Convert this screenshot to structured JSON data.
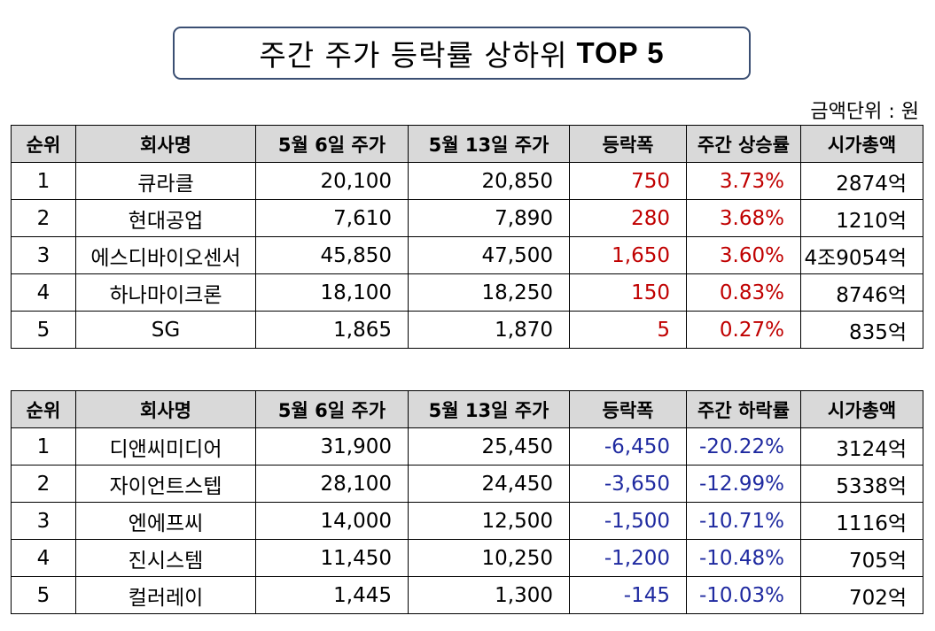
{
  "title": {
    "text": "주간 주가 등락률 상하위",
    "emph": "TOP 5"
  },
  "unit_note": "금액단위 : 원",
  "colors": {
    "up": "#c00000",
    "down": "#1f2aa0",
    "header_bg": "#d9d9d9",
    "title_border": "#3b4f73"
  },
  "rise_table": {
    "headers": [
      "순위",
      "회사명",
      "5월 6일 주가",
      "5월 13일 주가",
      "등락폭",
      "주간 상승률",
      "시가총액"
    ],
    "rows": [
      {
        "rank": "1",
        "company": "큐라클",
        "price_may6": "20,100",
        "price_may13": "20,850",
        "change": "750",
        "rate": "3.73%",
        "cap": "2874억"
      },
      {
        "rank": "2",
        "company": "현대공업",
        "price_may6": "7,610",
        "price_may13": "7,890",
        "change": "280",
        "rate": "3.68%",
        "cap": "1210억"
      },
      {
        "rank": "3",
        "company": "에스디바이오센서",
        "price_may6": "45,850",
        "price_may13": "47,500",
        "change": "1,650",
        "rate": "3.60%",
        "cap": "4조9054억"
      },
      {
        "rank": "4",
        "company": "하나마이크론",
        "price_may6": "18,100",
        "price_may13": "18,250",
        "change": "150",
        "rate": "0.83%",
        "cap": "8746억"
      },
      {
        "rank": "5",
        "company": "SG",
        "price_may6": "1,865",
        "price_may13": "1,870",
        "change": "5",
        "rate": "0.27%",
        "cap": "835억"
      }
    ]
  },
  "fall_table": {
    "headers": [
      "순위",
      "회사명",
      "5월 6일 주가",
      "5월 13일 주가",
      "등락폭",
      "주간 하락률",
      "시가총액"
    ],
    "rows": [
      {
        "rank": "1",
        "company": "디앤씨미디어",
        "price_may6": "31,900",
        "price_may13": "25,450",
        "change": "-6,450",
        "rate": "-20.22%",
        "cap": "3124억"
      },
      {
        "rank": "2",
        "company": "자이언트스텝",
        "price_may6": "28,100",
        "price_may13": "24,450",
        "change": "-3,650",
        "rate": "-12.99%",
        "cap": "5338억"
      },
      {
        "rank": "3",
        "company": "엔에프씨",
        "price_may6": "14,000",
        "price_may13": "12,500",
        "change": "-1,500",
        "rate": "-10.71%",
        "cap": "1116억"
      },
      {
        "rank": "4",
        "company": "진시스템",
        "price_may6": "11,450",
        "price_may13": "10,250",
        "change": "-1,200",
        "rate": "-10.48%",
        "cap": "705억"
      },
      {
        "rank": "5",
        "company": "컬러레이",
        "price_may6": "1,445",
        "price_may13": "1,300",
        "change": "-145",
        "rate": "-10.03%",
        "cap": "702억"
      }
    ]
  }
}
